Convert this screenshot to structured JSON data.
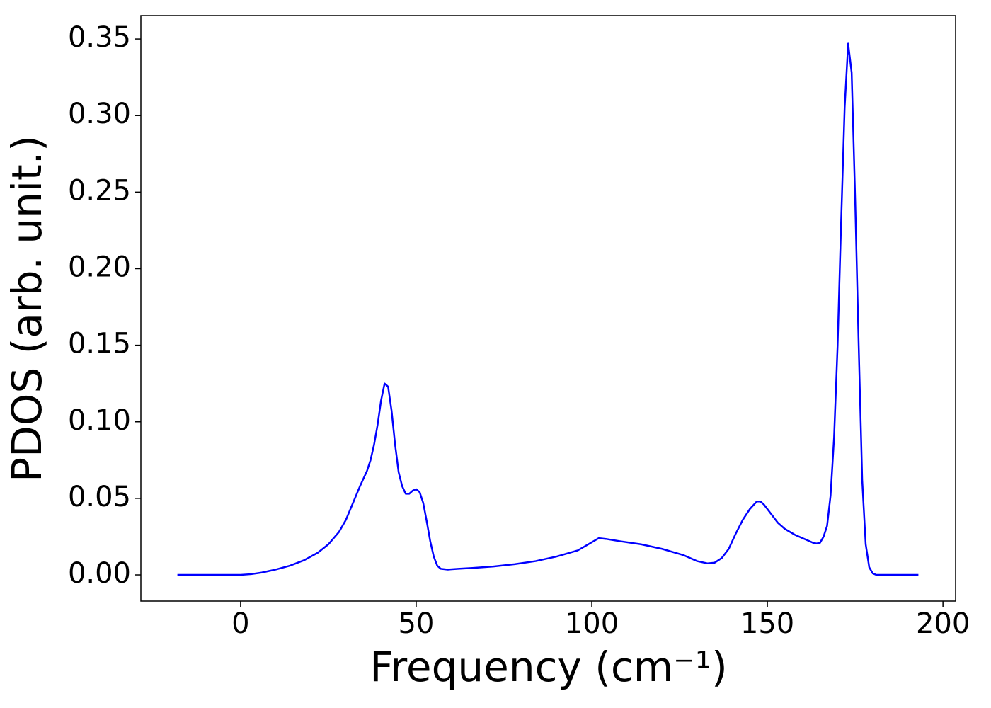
{
  "chart_data": {
    "type": "line",
    "x_label": "Frequency (cm⁻¹)",
    "y_label": "PDOS (arb. unit.)",
    "xlim": [
      -28.4,
      203.6
    ],
    "ylim": [
      -0.0171,
      0.3653
    ],
    "xticks": [
      0,
      50,
      100,
      150,
      200
    ],
    "yticks": [
      {
        "value": 0,
        "label": "0.00"
      },
      {
        "value": 0.05,
        "label": "0.05"
      },
      {
        "value": 0.1,
        "label": "0.10"
      },
      {
        "value": 0.15,
        "label": "0.15"
      },
      {
        "value": 0.2,
        "label": "0.20"
      },
      {
        "value": 0.25,
        "label": "0.25"
      },
      {
        "value": 0.3,
        "label": "0.30"
      },
      {
        "value": 0.35,
        "label": "0.35"
      }
    ],
    "grid": false,
    "series": [
      {
        "color": "#0000ff",
        "x": [
          -18,
          -10,
          0,
          3,
          6,
          10,
          14,
          18,
          22,
          25,
          28,
          30,
          32,
          34,
          36,
          37,
          38,
          39,
          40,
          41,
          42,
          43,
          44,
          45,
          46,
          47,
          48,
          49,
          50,
          51,
          52,
          53,
          54,
          55,
          56,
          57,
          59,
          62,
          66,
          72,
          78,
          84,
          90,
          96,
          99,
          102,
          104,
          108,
          114,
          120,
          126,
          130,
          133,
          135,
          137,
          139,
          141,
          143,
          145,
          147,
          148,
          149,
          151,
          153,
          155,
          158,
          161,
          163,
          164,
          165,
          166,
          167,
          168,
          169,
          170,
          171,
          172,
          173,
          174,
          175,
          176,
          177,
          178,
          179,
          180,
          181,
          185,
          193
        ],
        "values": [
          0,
          0,
          0,
          0.0005,
          0.0015,
          0.0035,
          0.006,
          0.0095,
          0.0145,
          0.02,
          0.028,
          0.036,
          0.047,
          0.058,
          0.068,
          0.075,
          0.085,
          0.098,
          0.114,
          0.125,
          0.123,
          0.107,
          0.085,
          0.067,
          0.058,
          0.053,
          0.053,
          0.055,
          0.056,
          0.054,
          0.047,
          0.035,
          0.022,
          0.012,
          0.006,
          0.004,
          0.0035,
          0.004,
          0.0045,
          0.0055,
          0.007,
          0.009,
          0.012,
          0.016,
          0.02,
          0.024,
          0.0235,
          0.022,
          0.02,
          0.017,
          0.013,
          0.009,
          0.0075,
          0.008,
          0.011,
          0.017,
          0.027,
          0.036,
          0.043,
          0.048,
          0.048,
          0.046,
          0.04,
          0.034,
          0.03,
          0.026,
          0.023,
          0.021,
          0.0205,
          0.021,
          0.025,
          0.032,
          0.052,
          0.09,
          0.15,
          0.23,
          0.305,
          0.347,
          0.328,
          0.245,
          0.15,
          0.062,
          0.02,
          0.005,
          0.001,
          0,
          0,
          0
        ]
      }
    ]
  }
}
